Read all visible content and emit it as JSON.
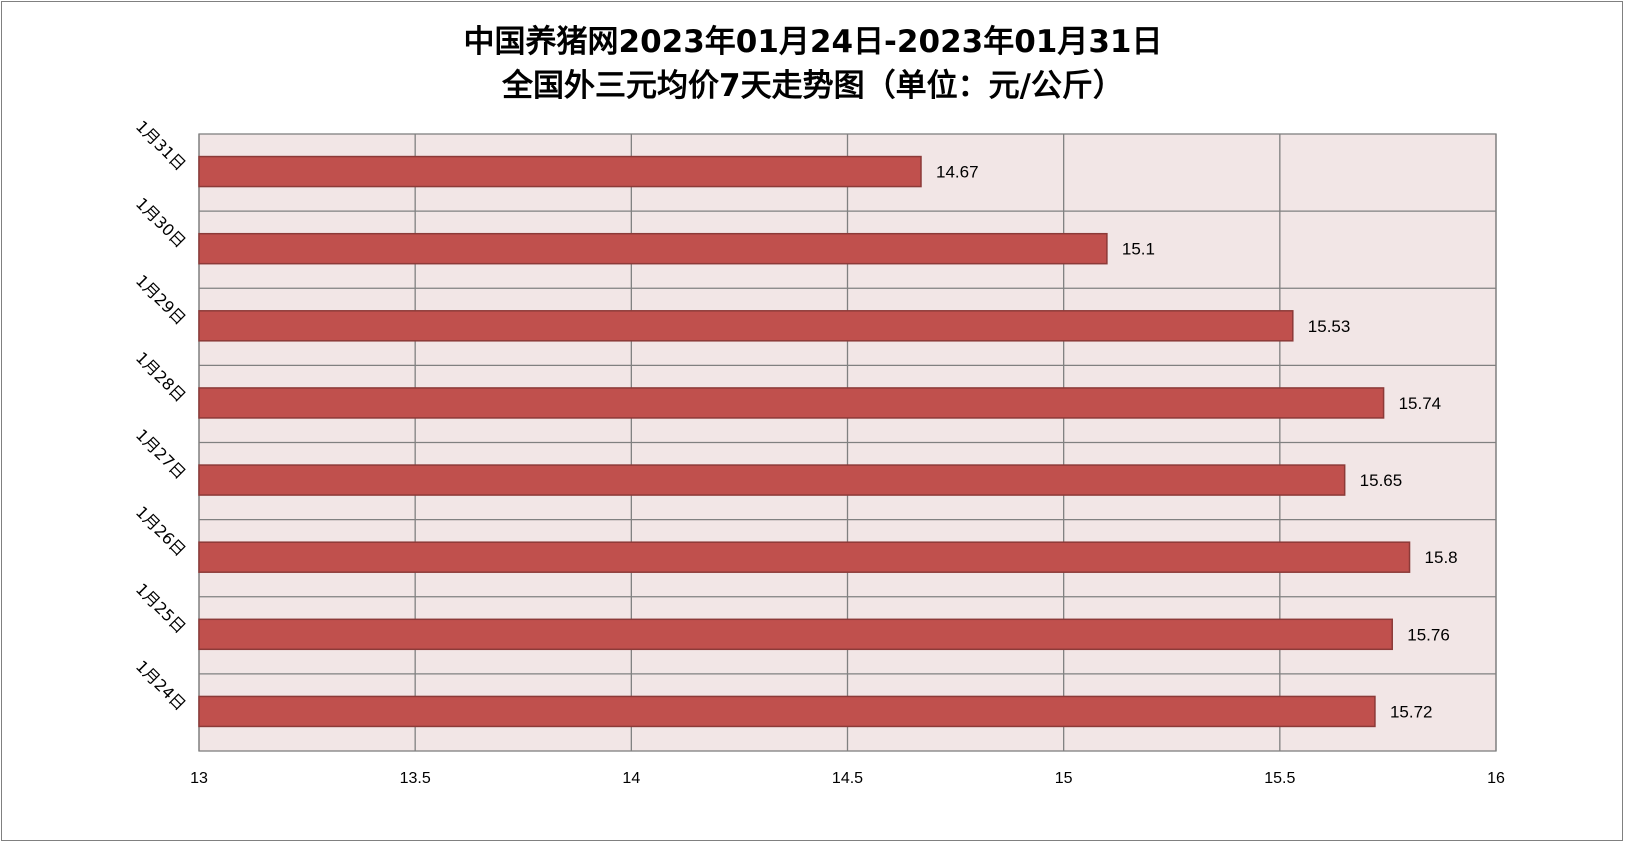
{
  "chart_data": {
    "type": "bar",
    "orientation": "horizontal",
    "title_line1": "中国养猪网2023年01月24日-2023年01月31日",
    "title_line2": "全国外三元均价7天走势图（单位：元/公斤）",
    "categories": [
      "1月31日",
      "1月30日",
      "1月29日",
      "1月28日",
      "1月27日",
      "1月26日",
      "1月25日",
      "1月24日"
    ],
    "values": [
      14.67,
      15.1,
      15.53,
      15.74,
      15.65,
      15.8,
      15.76,
      15.72
    ],
    "value_labels": [
      "14.67",
      "15.1",
      "15.53",
      "15.74",
      "15.65",
      "15.8",
      "15.76",
      "15.72"
    ],
    "xlim": [
      13,
      16
    ],
    "x_ticks": [
      13,
      13.5,
      14,
      14.5,
      15,
      15.5,
      16
    ],
    "x_tick_labels": [
      "13",
      "13.5",
      "14",
      "14.5",
      "15",
      "15.5",
      "16"
    ],
    "grid": true,
    "legend": "none",
    "colors": {
      "bar_fill": "#c0504d",
      "bar_stroke": "#8c3a38",
      "plot_bg": "#f2e6e6",
      "grid": "#808080"
    }
  }
}
